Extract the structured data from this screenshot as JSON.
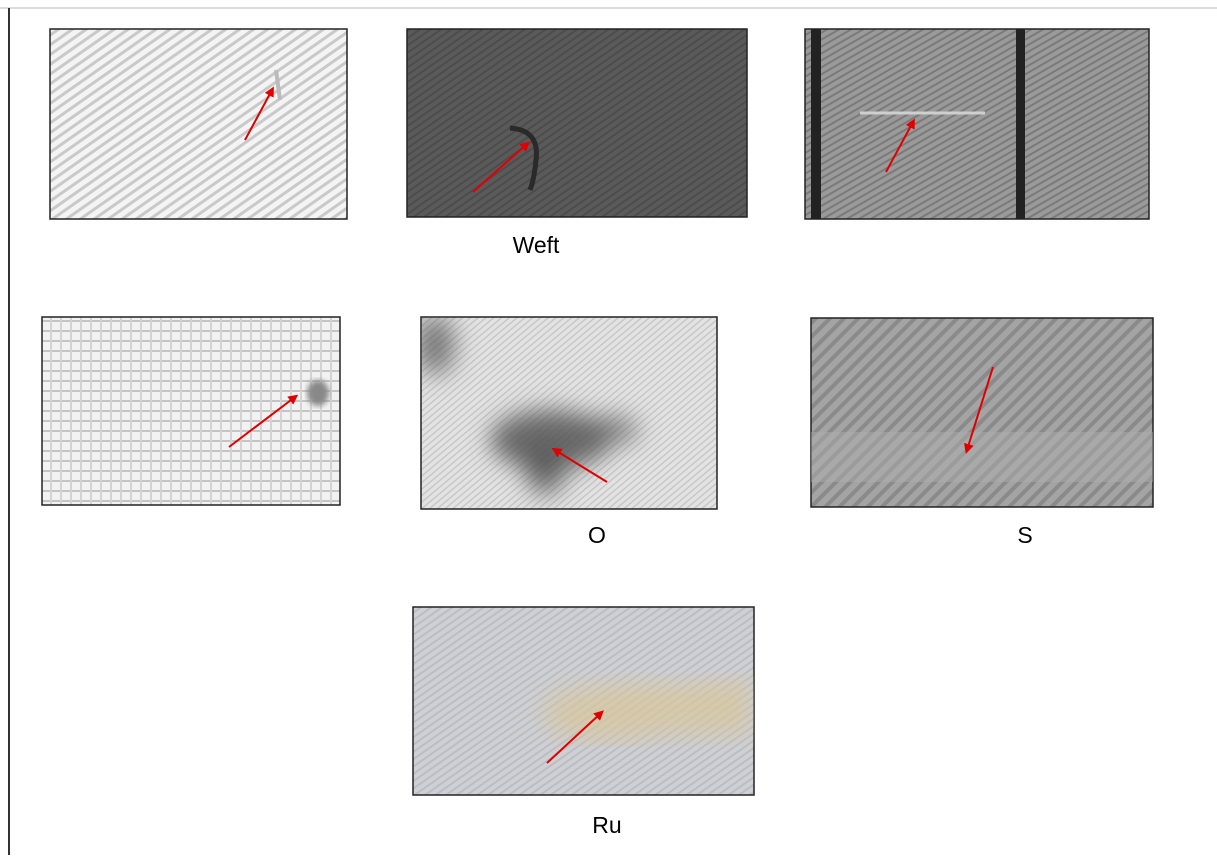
{
  "figure": {
    "captions": [
      "Weft",
      "O",
      "S",
      "Ru"
    ]
  }
}
